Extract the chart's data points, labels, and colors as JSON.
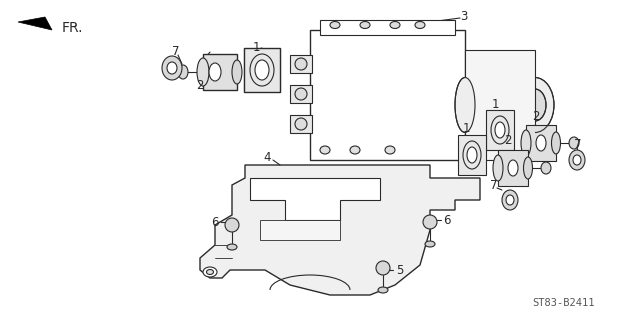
{
  "background_color": "#ffffff",
  "diagram_code": "ST83-B2411",
  "line_color": "#2a2a2a",
  "text_color": "#2a2a2a",
  "code_fontsize": 7.5,
  "label_fontsize": 8.5,
  "fr_fontsize": 10
}
